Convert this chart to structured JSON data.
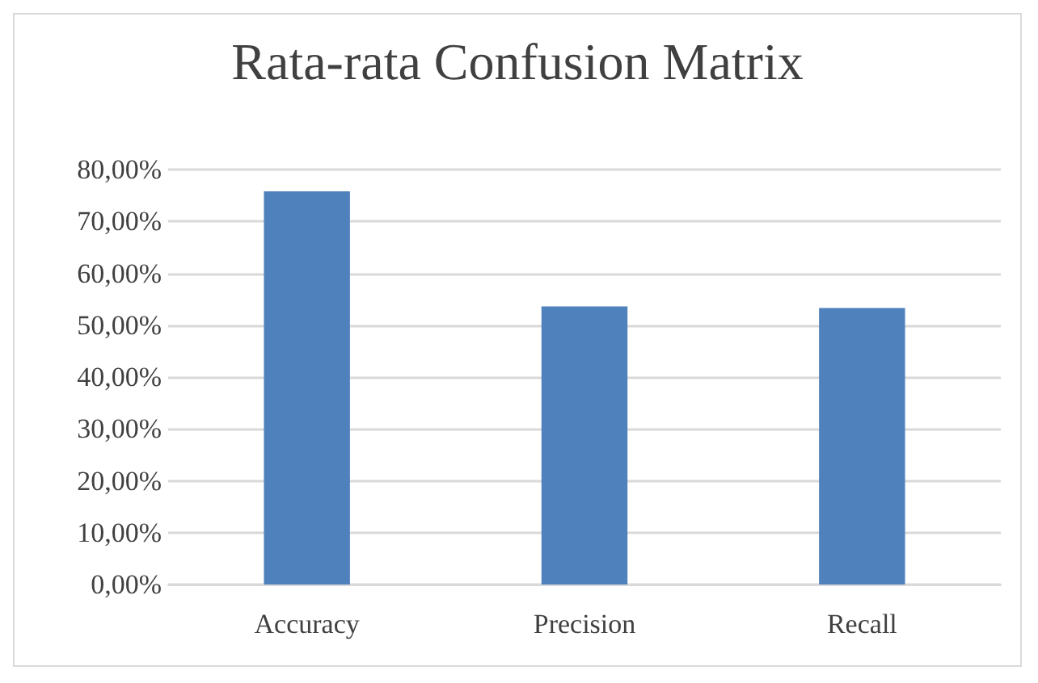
{
  "chart_data": {
    "type": "bar",
    "title": "Rata-rata Confusion Matrix",
    "categories": [
      "Accuracy",
      "Precision",
      "Recall"
    ],
    "values": [
      75.8,
      53.6,
      53.3
    ],
    "color": "#4f81bd",
    "ylim": [
      0,
      80
    ],
    "yticks": [
      {
        "value": 0,
        "label": "0,00%"
      },
      {
        "value": 10,
        "label": "10,00%"
      },
      {
        "value": 20,
        "label": "20,00%"
      },
      {
        "value": 30,
        "label": "30,00%"
      },
      {
        "value": 40,
        "label": "40,00%"
      },
      {
        "value": 50,
        "label": "50,00%"
      },
      {
        "value": 60,
        "label": "60,00%"
      },
      {
        "value": 70,
        "label": "70,00%"
      },
      {
        "value": 80,
        "label": "80,00%"
      }
    ],
    "grid": "y"
  }
}
